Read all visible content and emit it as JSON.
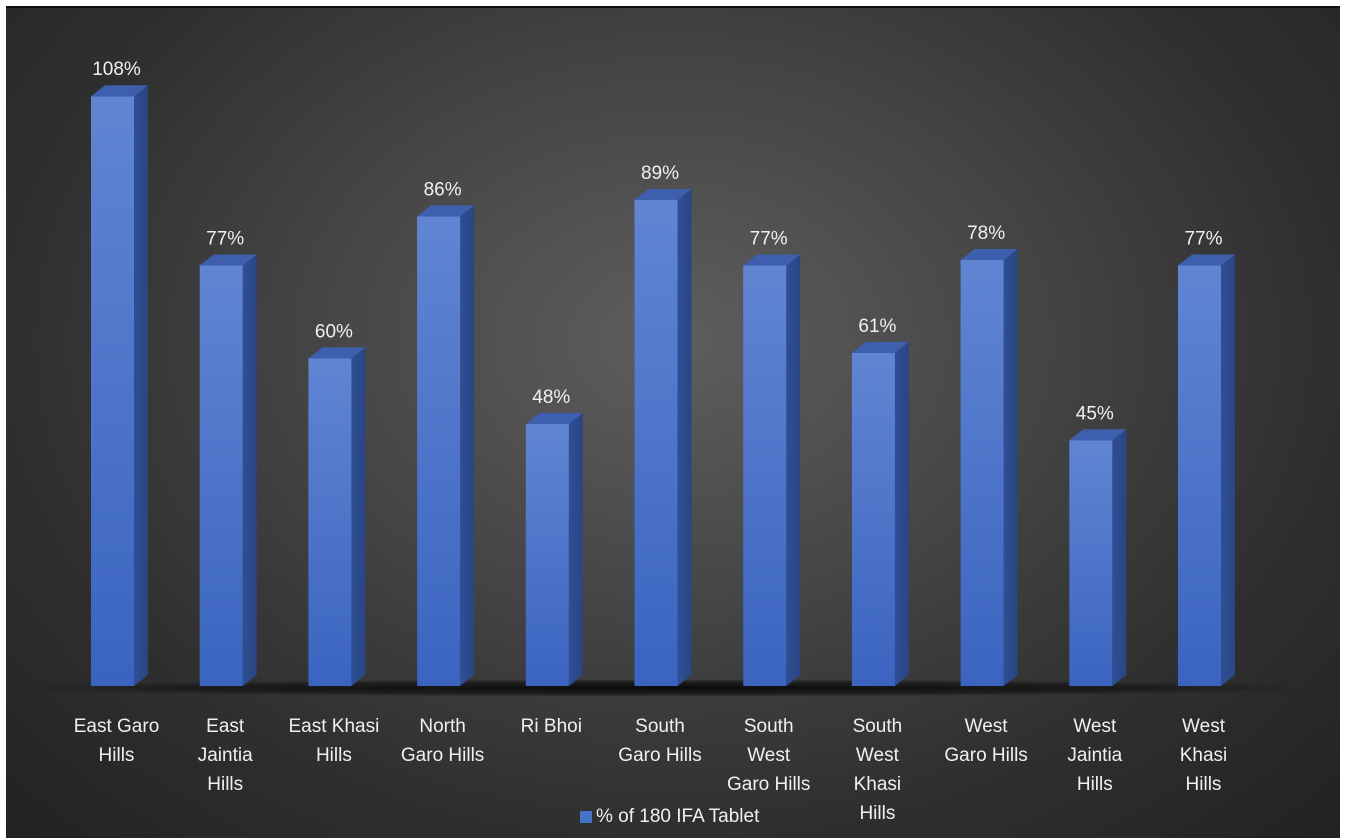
{
  "chart_data": {
    "type": "bar",
    "style": "3d-column",
    "categories": [
      [
        "East Garo",
        "Hills"
      ],
      [
        "East",
        "Jaintia",
        "Hills"
      ],
      [
        "East Khasi",
        "Hills"
      ],
      [
        "North",
        "Garo Hills"
      ],
      [
        "Ri Bhoi"
      ],
      [
        "South",
        "Garo Hills"
      ],
      [
        "South",
        "West",
        "Garo Hills"
      ],
      [
        "South",
        "West",
        "Khasi",
        "Hills"
      ],
      [
        "West",
        "Garo Hills"
      ],
      [
        "West",
        "Jaintia",
        "Hills"
      ],
      [
        "West",
        "Khasi",
        "Hills"
      ]
    ],
    "series": [
      {
        "name": "% of 180 IFA Tablet",
        "values": [
          108,
          77,
          60,
          86,
          48,
          89,
          77,
          61,
          78,
          45,
          77
        ],
        "data_labels": [
          "108%",
          "77%",
          "60%",
          "86%",
          "48%",
          "89%",
          "77%",
          "61%",
          "78%",
          "45%",
          "77%"
        ],
        "color": "#4472c4"
      }
    ],
    "ylim": [
      0,
      115
    ],
    "grid": false,
    "legend_position": "bottom"
  }
}
